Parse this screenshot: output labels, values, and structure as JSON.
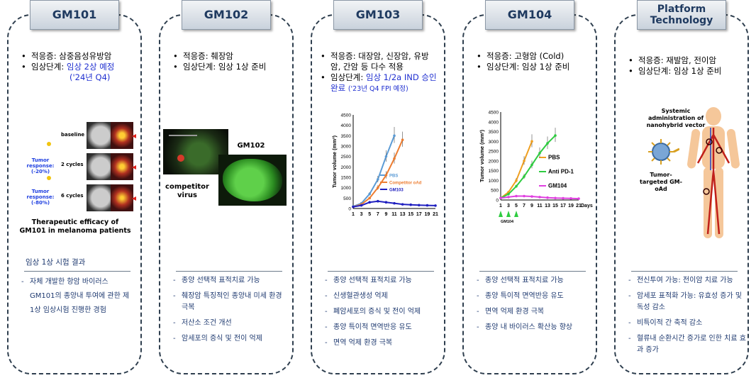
{
  "columns": [
    {
      "title": "GM101",
      "indication_label": "적응증: 삼중음성유방암",
      "phase_prefix": "임상단계: ",
      "phase_value": "임상 2상 예정",
      "phase_note": "('24년 Q4)",
      "section_title": "임상 1상 시험 결과",
      "features": [
        "자체 개발한 항암 바이러스 GM101의 종양내 투여에 관한 제 1상 임상시험 진행한 경험"
      ],
      "figure": {
        "row_labels": [
          "baseline",
          "2 cycles",
          "6 cycles"
        ],
        "responses": [
          "Tumor response: (-20%)",
          "Tumor response: (-80%)"
        ],
        "caption": "Therapeutic efficacy of GM101 in melanoma patients"
      }
    },
    {
      "title": "GM102",
      "indication_label": "적응증: 췌장암",
      "phase_label": "임상단계: 임상 1상 준비",
      "features": [
        "종양 선택적 표적치료 가능",
        "췌장암 특징적인 종양내 미세 환경극복",
        "저산소 조건 개선",
        "암세포의 증식 및 전이 억제"
      ],
      "figure": {
        "left_label": "competitor virus",
        "right_label": "GM102"
      }
    },
    {
      "title": "GM103",
      "indication_label": "적응증: 대장암, 신장암, 유방암, 간암 등 다수 적용",
      "phase_prefix": "임상단계: ",
      "phase_value": "임상 1/2a IND 승인완료",
      "phase_note": "('23년 Q4 FPI 예정)",
      "features": [
        "종양 선택적 표적치료 가능",
        "신생혈관생성 억제",
        "폐암세포의 증식 및 전이 억제",
        "종양 특이적 면역반응 유도",
        "면역 억제 환경 극복"
      ]
    },
    {
      "title": "GM104",
      "indication_label": "적응증: 고형암 (Cold)",
      "phase_label": "임상단계: 임상 1상 준비",
      "features": [
        "종양 선택적 표적치료 가능",
        "종양 특이적 면역반응 유도",
        "면역 억제 환경 극복",
        "종양 내 바이러스 확산능 향상"
      ]
    },
    {
      "title": "Platform Technology",
      "indication_label": "적응증: 재발암, 전이암",
      "phase_label": "임상단계: 임상 1상 준비",
      "features": [
        "전신투여 가능: 전이암 치료 가능",
        "암세포 표적화 가능: 유효성 증가 및 독성 감소",
        "비특이적 간 축적 감소",
        "혈류내 순환시간 증가로 인한 치료 효과 증가"
      ],
      "figure": {
        "label_top": "Systemic administration of nanohybrid vector",
        "label_bottom": "Tumor-targeted GM-oAd"
      }
    }
  ],
  "chart_data": [
    {
      "type": "line",
      "ylabel": "Tumor volume (mm³)",
      "xlabel": "",
      "x": [
        1,
        3,
        5,
        7,
        9,
        11,
        13,
        15,
        17,
        19,
        21
      ],
      "ylim": [
        0,
        4500
      ],
      "yticks": [
        0,
        500,
        1000,
        1500,
        2000,
        2500,
        3000,
        3500,
        4000,
        4500
      ],
      "series": [
        {
          "name": "PBS",
          "color": "#5b9bd5",
          "x": [
            1,
            3,
            5,
            7,
            9,
            11
          ],
          "values": [
            100,
            250,
            700,
            1400,
            2500,
            3500
          ]
        },
        {
          "name": "Competitor oAd",
          "color": "#ed7d31",
          "x": [
            1,
            3,
            5,
            7,
            9,
            11,
            13
          ],
          "values": [
            80,
            200,
            500,
            1000,
            1600,
            2400,
            3300
          ]
        },
        {
          "name": "GM103",
          "color": "#2020c0",
          "x": [
            1,
            3,
            5,
            7,
            9,
            11,
            13,
            15,
            17,
            19,
            21
          ],
          "values": [
            80,
            150,
            300,
            350,
            300,
            250,
            200,
            180,
            160,
            150,
            140
          ]
        }
      ]
    },
    {
      "type": "line",
      "ylabel": "Tumor volume (mm³)",
      "xlabel": "Days",
      "x": [
        1,
        3,
        5,
        7,
        9,
        11,
        13,
        15,
        17,
        19,
        21
      ],
      "ylim": [
        0,
        4500
      ],
      "yticks": [
        0,
        500,
        1000,
        1500,
        2000,
        2500,
        3000,
        3500,
        4000,
        4500
      ],
      "arrow_label": "GM104",
      "series": [
        {
          "name": "PBS",
          "color": "#f0a020",
          "x": [
            1,
            3,
            5,
            7,
            9
          ],
          "values": [
            100,
            400,
            1000,
            2000,
            3000
          ]
        },
        {
          "name": "Anti PD-1",
          "color": "#2ecc40",
          "x": [
            1,
            3,
            5,
            7,
            9,
            11,
            13,
            15
          ],
          "values": [
            100,
            300,
            700,
            1200,
            1800,
            2400,
            2900,
            3300
          ]
        },
        {
          "name": "GM104",
          "color": "#e040e0",
          "x": [
            1,
            3,
            5,
            7,
            9,
            11,
            13,
            15,
            17,
            19,
            21
          ],
          "values": [
            100,
            150,
            200,
            200,
            180,
            150,
            120,
            100,
            90,
            80,
            70
          ]
        }
      ]
    }
  ]
}
